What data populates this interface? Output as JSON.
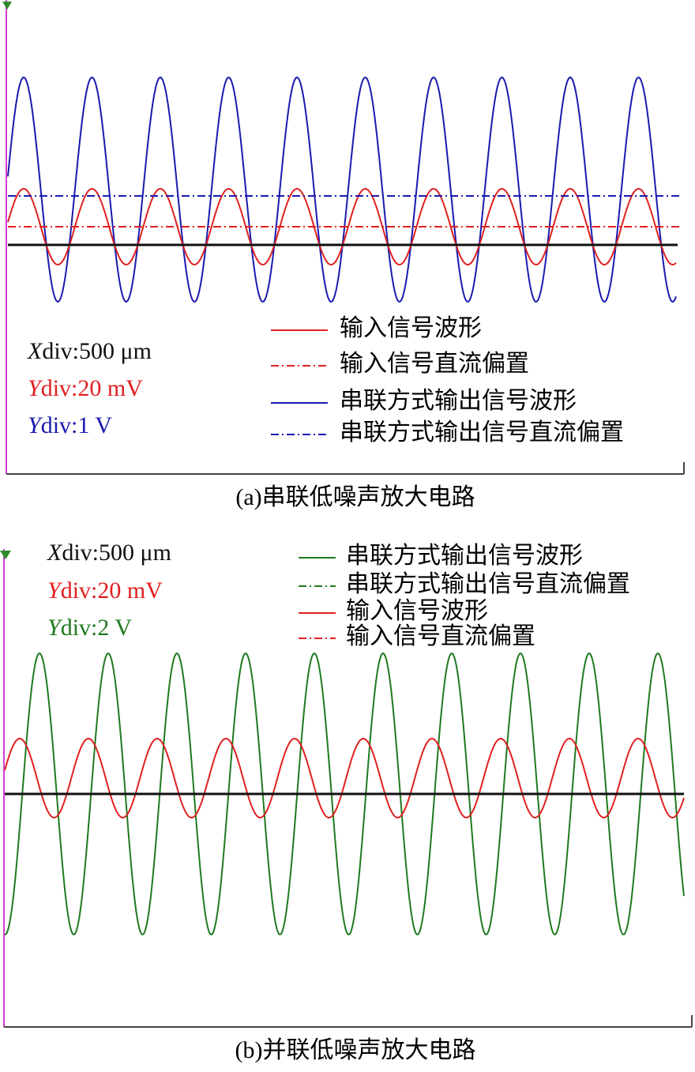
{
  "panels": [
    {
      "caption": "(a)串联低噪声放大电路",
      "scales": [
        {
          "var": "X",
          "rest": "div:500 μm"
        },
        {
          "var": "Y",
          "rest": "div:20 mV"
        },
        {
          "var": "Y",
          "rest": "div:1 V"
        }
      ],
      "legend": [
        "输入信号波形",
        "输入信号直流偏置",
        "串联方式输出信号波形",
        "串联方式输出信号直流偏置"
      ]
    },
    {
      "caption": "(b)并联低噪声放大电路",
      "scales": [
        {
          "var": "X",
          "rest": "div:500 μm"
        },
        {
          "var": "Y",
          "rest": "div:20 mV"
        },
        {
          "var": "Y",
          "rest": "div:2 V"
        }
      ],
      "legend": [
        "串联方式输出信号波形",
        "串联方式输出信号直流偏置",
        "输入信号波形",
        "输入信号直流偏置"
      ]
    }
  ]
}
